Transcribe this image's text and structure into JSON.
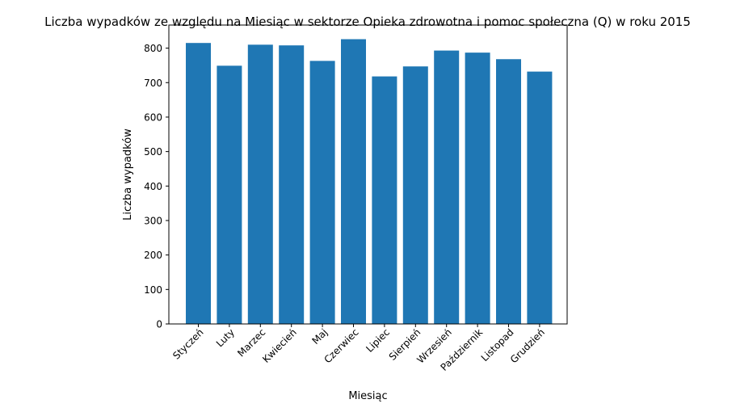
{
  "chart_data": {
    "type": "bar",
    "title": "Liczba wypadków ze względu na Miesiąc w sektorze Opieka zdrowotna i pomoc społeczna (Q) w roku 2015",
    "xlabel": "Miesiąc",
    "ylabel": "Liczba wypadków",
    "categories": [
      "Styczeń",
      "Luty",
      "Marzec",
      "Kwiecień",
      "Maj",
      "Czerwiec",
      "Lipiec",
      "Sierpień",
      "Wrzesień",
      "Październik",
      "Listopad",
      "Grudzień"
    ],
    "values": [
      815,
      749,
      810,
      808,
      763,
      826,
      718,
      747,
      793,
      787,
      768,
      732
    ],
    "ylim": [
      0,
      867
    ],
    "yticks": [
      0,
      100,
      200,
      300,
      400,
      500,
      600,
      700,
      800
    ],
    "grid": false,
    "legend": "none",
    "bar_color": "#1f77b4"
  }
}
